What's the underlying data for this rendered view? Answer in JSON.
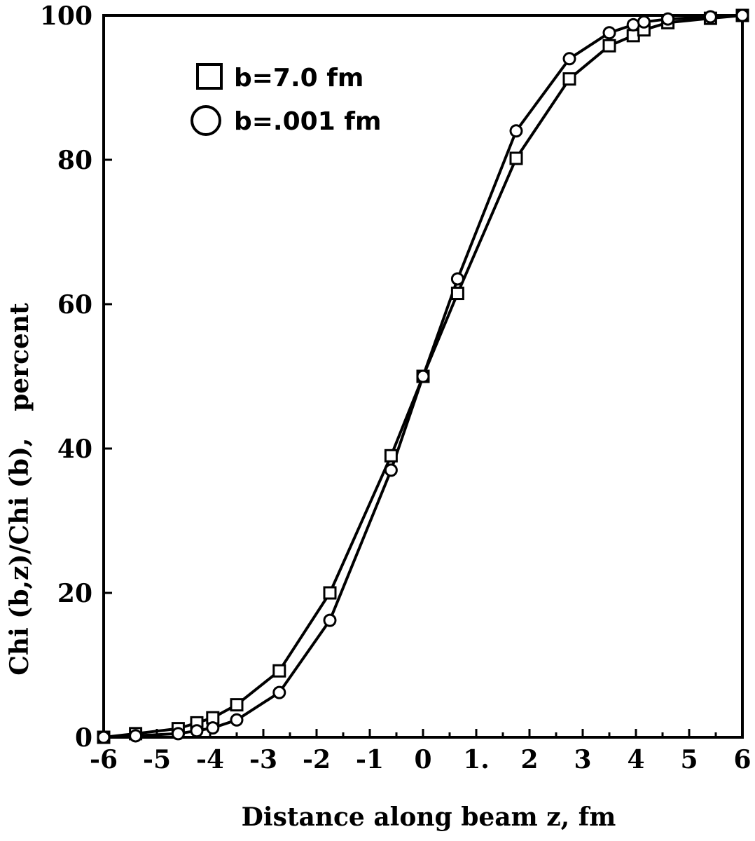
{
  "chart_data": {
    "type": "line",
    "title": "",
    "xlabel": "Distance along beam z,  fm",
    "ylabel": "Chi (b,z)/Chi (b),   percent",
    "xlim": [
      -6,
      6
    ],
    "ylim": [
      0,
      100
    ],
    "x_ticks": [
      -6,
      -5,
      -4,
      -3,
      -2,
      -1,
      0,
      1,
      2,
      3,
      4,
      5,
      6
    ],
    "x_tick_labels": [
      "-6",
      "-5",
      "-4",
      "-3",
      "-2",
      "-1",
      "0",
      "1.",
      "2",
      "3",
      "4",
      "5",
      "6"
    ],
    "y_ticks": [
      0,
      20,
      40,
      60,
      80,
      100
    ],
    "y_tick_labels": [
      "0",
      "20",
      "40",
      "60",
      "80",
      "100"
    ],
    "grid": false,
    "legend_position": "top-left",
    "series": [
      {
        "name": "b=7.0 fm",
        "marker": "square",
        "x": [
          -6.0,
          -5.4,
          -4.6,
          -4.25,
          -3.95,
          -3.5,
          -2.7,
          -1.75,
          -0.6,
          0.0,
          0.65,
          1.75,
          2.75,
          3.5,
          3.95,
          4.15,
          4.6,
          5.4,
          6.0
        ],
        "y": [
          0,
          0.5,
          1.2,
          2.0,
          2.7,
          4.5,
          9.2,
          20.0,
          39.0,
          50.0,
          61.5,
          80.2,
          91.2,
          95.8,
          97.2,
          98.0,
          99.0,
          99.6,
          100
        ]
      },
      {
        "name": "b=.001 fm",
        "marker": "circle",
        "x": [
          -6.0,
          -5.4,
          -4.6,
          -4.25,
          -3.95,
          -3.5,
          -2.7,
          -1.75,
          -0.6,
          0.0,
          0.65,
          1.75,
          2.75,
          3.5,
          3.95,
          4.15,
          4.6,
          5.4,
          6.0
        ],
        "y": [
          0,
          0.2,
          0.5,
          0.9,
          1.3,
          2.4,
          6.2,
          16.2,
          37.0,
          50.0,
          63.5,
          84.0,
          94.0,
          97.6,
          98.7,
          99.1,
          99.5,
          99.8,
          100
        ]
      }
    ]
  }
}
